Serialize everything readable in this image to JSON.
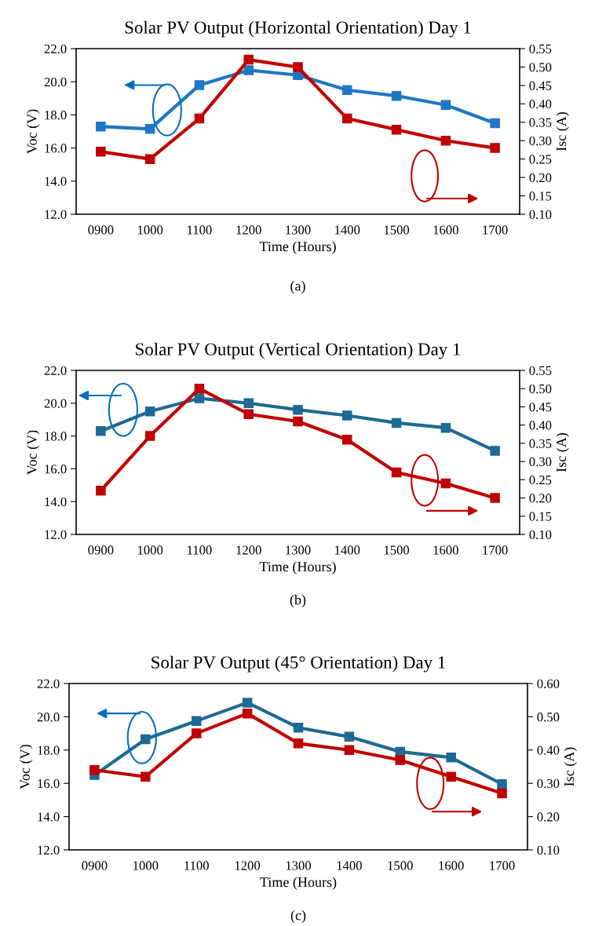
{
  "chart_data": [
    {
      "type": "line",
      "title": "Solar PV Output (Horizontal Orientation) Day 1",
      "xlabel": "Time (Hours)",
      "ylabel": "Voc (V)",
      "y2label": "Isc (A)",
      "annotations": [
        "(a)"
      ],
      "categories": [
        "0900",
        "1000",
        "1100",
        "1200",
        "1300",
        "1400",
        "1500",
        "1600",
        "1700"
      ],
      "series": [
        {
          "color": "#1f77c4",
          "values": [
            17.3,
            17.15,
            19.8,
            20.7,
            20.4,
            19.5,
            19.15,
            18.6,
            17.5
          ]
        },
        {
          "color": "#c00000",
          "axis": "y2",
          "values": [
            0.27,
            0.25,
            0.36,
            0.52,
            0.5,
            0.36,
            0.33,
            0.3,
            0.28
          ]
        }
      ],
      "ylim": [
        12,
        22
      ],
      "yticks": [
        {
          "value": 12,
          "label": "12.0"
        },
        {
          "value": 14,
          "label": "14.0"
        },
        {
          "value": 16,
          "label": "16.0"
        },
        {
          "value": 18,
          "label": "18.0"
        },
        {
          "value": 20,
          "label": "20.0"
        },
        {
          "value": 22,
          "label": "22.0"
        }
      ],
      "y2lim": [
        0.1,
        0.55
      ],
      "y2ticks": [
        {
          "value": 0.1,
          "label": "0.10"
        },
        {
          "value": 0.15,
          "label": "0.15"
        },
        {
          "value": 0.2,
          "label": "0.20"
        },
        {
          "value": 0.25,
          "label": "0.25"
        },
        {
          "value": 0.3,
          "label": "0.30"
        },
        {
          "value": 0.35,
          "label": "0.35"
        },
        {
          "value": 0.4,
          "label": "0.40"
        },
        {
          "value": 0.45,
          "label": "0.45"
        },
        {
          "value": 0.5,
          "label": "0.50"
        },
        {
          "value": 0.55,
          "label": "0.55"
        }
      ],
      "grid": false,
      "legend": false,
      "marker": "square",
      "line_style": "solid"
    },
    {
      "type": "line",
      "title": "Solar PV Output (Vertical Orientation) Day 1",
      "xlabel": "Time (Hours)",
      "ylabel": "Voc (V)",
      "y2label": "Isc (A)",
      "annotations": [
        "(b)"
      ],
      "categories": [
        "0900",
        "1000",
        "1100",
        "1200",
        "1300",
        "1400",
        "1500",
        "1600",
        "1700"
      ],
      "series": [
        {
          "color": "#1d6a94",
          "values": [
            18.3,
            19.5,
            20.3,
            20.0,
            19.6,
            19.25,
            18.8,
            18.5,
            17.1
          ]
        },
        {
          "color": "#c00000",
          "axis": "y2",
          "values": [
            0.22,
            0.37,
            0.5,
            0.43,
            0.41,
            0.36,
            0.27,
            0.24,
            0.2
          ]
        }
      ],
      "ylim": [
        12,
        22
      ],
      "yticks": [
        {
          "value": 12,
          "label": "12.0"
        },
        {
          "value": 14,
          "label": "14.0"
        },
        {
          "value": 16,
          "label": "16.0"
        },
        {
          "value": 18,
          "label": "18.0"
        },
        {
          "value": 20,
          "label": "20.0"
        },
        {
          "value": 22,
          "label": "22.0"
        }
      ],
      "y2lim": [
        0.1,
        0.55
      ],
      "y2ticks": [
        {
          "value": 0.1,
          "label": "0.10"
        },
        {
          "value": 0.15,
          "label": "0.15"
        },
        {
          "value": 0.2,
          "label": "0.20"
        },
        {
          "value": 0.25,
          "label": "0.25"
        },
        {
          "value": 0.3,
          "label": "0.30"
        },
        {
          "value": 0.35,
          "label": "0.35"
        },
        {
          "value": 0.4,
          "label": "0.40"
        },
        {
          "value": 0.45,
          "label": "0.45"
        },
        {
          "value": 0.5,
          "label": "0.50"
        },
        {
          "value": 0.55,
          "label": "0.55"
        }
      ],
      "grid": false,
      "legend": false,
      "marker": "square",
      "line_style": "solid"
    },
    {
      "type": "line",
      "title": "Solar PV Output (45° Orientation) Day 1",
      "xlabel": "Time (Hours)",
      "ylabel": "Voc (V)",
      "y2label": "Isc (A)",
      "annotations": [
        "(c)"
      ],
      "categories": [
        "0900",
        "1000",
        "1100",
        "1200",
        "1300",
        "1400",
        "1500",
        "1600",
        "1700"
      ],
      "series": [
        {
          "color": "#1d6a94",
          "values": [
            16.5,
            18.65,
            19.75,
            20.85,
            19.35,
            18.8,
            17.9,
            17.55,
            15.95
          ]
        },
        {
          "color": "#c00000",
          "axis": "y2",
          "values": [
            0.34,
            0.32,
            0.45,
            0.51,
            0.42,
            0.4,
            0.37,
            0.32,
            0.27
          ]
        }
      ],
      "ylim": [
        12,
        22
      ],
      "yticks": [
        {
          "value": 12,
          "label": "12.0"
        },
        {
          "value": 14,
          "label": "14.0"
        },
        {
          "value": 16,
          "label": "16.0"
        },
        {
          "value": 18,
          "label": "18.0"
        },
        {
          "value": 20,
          "label": "20.0"
        },
        {
          "value": 22,
          "label": "22.0"
        }
      ],
      "y2lim": [
        0.1,
        0.6
      ],
      "y2ticks": [
        {
          "value": 0.1,
          "label": "0.10"
        },
        {
          "value": 0.2,
          "label": "0.20"
        },
        {
          "value": 0.3,
          "label": "0.30"
        },
        {
          "value": 0.4,
          "label": "0.40"
        },
        {
          "value": 0.5,
          "label": "0.50"
        },
        {
          "value": 0.6,
          "label": "0.60"
        }
      ],
      "grid": false,
      "legend": false,
      "marker": "square",
      "line_style": "solid"
    }
  ]
}
